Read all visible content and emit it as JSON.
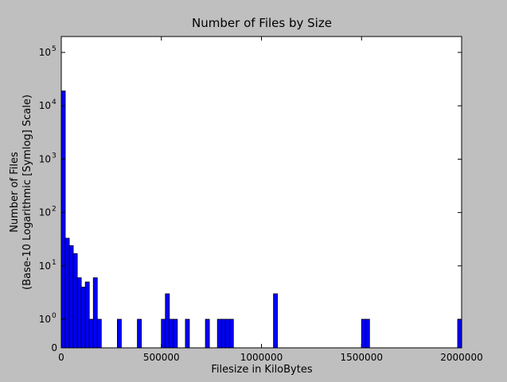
{
  "chart_data": {
    "type": "bar",
    "title": "Number of Files by Size",
    "xlabel": "Filesize in KiloBytes",
    "ylabel": [
      "Number of Files",
      "(Base-10 Logarithmic [Symlog] Scale)"
    ],
    "xlim": [
      0,
      2000000
    ],
    "ylim": [
      0,
      100000
    ],
    "yscale": "symlog",
    "bin_width": 20000,
    "grid": false,
    "legend": "none",
    "x_ticks": [
      {
        "value": 0,
        "label": "0"
      },
      {
        "value": 500000,
        "label": "500000"
      },
      {
        "value": 1000000,
        "label": "1000000"
      },
      {
        "value": 1500000,
        "label": "1500000"
      },
      {
        "value": 2000000,
        "label": "2000000"
      }
    ],
    "y_ticks": [
      {
        "value": 0,
        "base": "0",
        "exp": ""
      },
      {
        "value": 1,
        "base": "10",
        "exp": "0"
      },
      {
        "value": 10,
        "base": "10",
        "exp": "1"
      },
      {
        "value": 100,
        "base": "10",
        "exp": "2"
      },
      {
        "value": 1000,
        "base": "10",
        "exp": "3"
      },
      {
        "value": 10000,
        "base": "10",
        "exp": "4"
      },
      {
        "value": 100000,
        "base": "10",
        "exp": "5"
      }
    ],
    "bins": [
      {
        "x": 0,
        "count": 19000
      },
      {
        "x": 20000,
        "count": 33
      },
      {
        "x": 40000,
        "count": 24
      },
      {
        "x": 60000,
        "count": 17
      },
      {
        "x": 80000,
        "count": 6
      },
      {
        "x": 100000,
        "count": 4
      },
      {
        "x": 120000,
        "count": 5
      },
      {
        "x": 140000,
        "count": 1
      },
      {
        "x": 160000,
        "count": 6
      },
      {
        "x": 180000,
        "count": 1
      },
      {
        "x": 280000,
        "count": 1
      },
      {
        "x": 380000,
        "count": 1
      },
      {
        "x": 500000,
        "count": 1
      },
      {
        "x": 520000,
        "count": 3
      },
      {
        "x": 540000,
        "count": 1
      },
      {
        "x": 560000,
        "count": 1
      },
      {
        "x": 620000,
        "count": 1
      },
      {
        "x": 720000,
        "count": 1
      },
      {
        "x": 780000,
        "count": 1
      },
      {
        "x": 800000,
        "count": 1
      },
      {
        "x": 820000,
        "count": 1
      },
      {
        "x": 840000,
        "count": 1
      },
      {
        "x": 1060000,
        "count": 3
      },
      {
        "x": 1500000,
        "count": 1
      },
      {
        "x": 1520000,
        "count": 1
      },
      {
        "x": 1980000,
        "count": 1
      }
    ],
    "colors": {
      "bar": "#0000ff",
      "bar_edge": "#000000",
      "axes_bg": "#ffffff",
      "figure_bg": "#bfbfbf"
    }
  }
}
